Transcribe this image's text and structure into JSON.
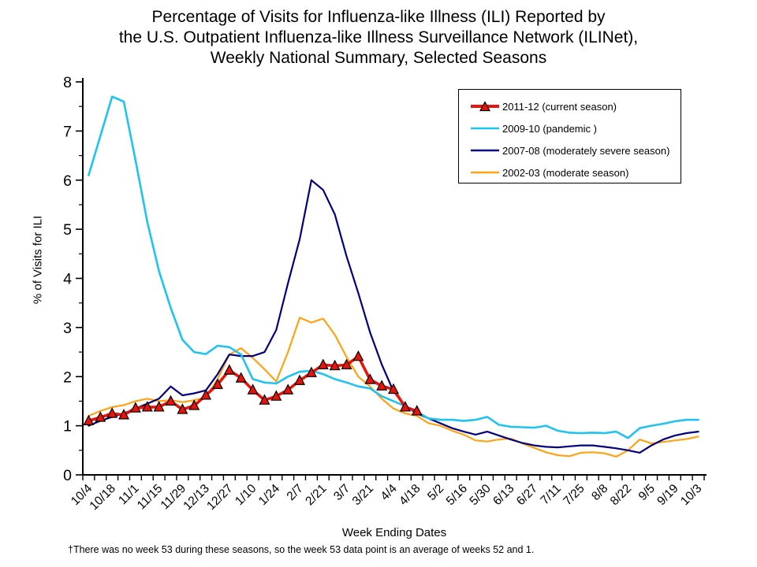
{
  "title": {
    "lines": [
      "Percentage of Visits for Influenza-like Illness (ILI) Reported by",
      "the U.S. Outpatient Influenza-like Illness Surveillance Network (ILINet),",
      "Weekly National Summary, Selected Seasons"
    ]
  },
  "footnote": "†There was no week 53 during these seasons, so the week 53 data point is an average of weeks 52 and 1.",
  "chart_data": {
    "type": "line",
    "title": "Percentage of Visits for Influenza-like Illness (ILI) Reported by the U.S. Outpatient Influenza-like Illness Surveillance Network (ILINet), Weekly National Summary, Selected Seasons",
    "xlabel": "Week Ending Dates",
    "ylabel": "% of Visits for ILI",
    "ylim": [
      0,
      8
    ],
    "y_ticks": [
      0,
      1,
      2,
      3,
      4,
      5,
      6,
      7,
      8
    ],
    "grid": false,
    "legend_position": "upper right",
    "weeks_total": 53,
    "x_label_interval_weeks": 2,
    "x_tick_labels": [
      "10/4",
      "10/18",
      "11/1",
      "11/15",
      "11/29",
      "12/13",
      "12/27",
      "1/10",
      "1/24",
      "2/7",
      "2/21",
      "3/7",
      "3/21",
      "4/4",
      "4/18",
      "5/2",
      "5/16",
      "5/30",
      "6/13",
      "6/27",
      "7/11",
      "7/25",
      "8/8",
      "8/22",
      "9/5",
      "9/19",
      "10/3"
    ],
    "series": [
      {
        "id": "2011-12",
        "name": "2011-12 (current season)",
        "color": "#e8140c",
        "marker": "triangle",
        "line_width": 3.6,
        "values": [
          1.1,
          1.17,
          1.25,
          1.22,
          1.36,
          1.38,
          1.38,
          1.5,
          1.33,
          1.41,
          1.62,
          1.84,
          2.13,
          1.97,
          1.73,
          1.52,
          1.6,
          1.73,
          1.92,
          2.08,
          2.24,
          2.22,
          2.24,
          2.41,
          1.94,
          1.81,
          1.74,
          1.38,
          1.3
        ]
      },
      {
        "id": "2009-10",
        "name": "2009-10 (pandemic )",
        "color": "#1fc3f2",
        "marker": "none",
        "line_width": 2.6,
        "values": [
          6.1,
          6.9,
          7.7,
          7.6,
          6.4,
          5.15,
          4.15,
          3.4,
          2.75,
          2.5,
          2.46,
          2.63,
          2.6,
          2.45,
          1.95,
          1.88,
          1.86,
          2.0,
          2.1,
          2.12,
          2.05,
          1.95,
          1.88,
          1.8,
          1.76,
          1.6,
          1.5,
          1.4,
          1.28,
          1.15,
          1.12,
          1.12,
          1.1,
          1.12,
          1.18,
          1.02,
          0.98,
          0.97,
          0.96,
          1.0,
          0.9,
          0.86,
          0.85,
          0.86,
          0.85,
          0.88,
          0.75,
          0.95,
          1.0,
          1.04,
          1.09,
          1.12,
          1.12
        ]
      },
      {
        "id": "2007-08",
        "name": "2007-08 (moderately severe season)",
        "color": "#000080",
        "marker": "none",
        "line_width": 2.2,
        "values": [
          1.0,
          1.1,
          1.18,
          1.25,
          1.35,
          1.45,
          1.55,
          1.8,
          1.62,
          1.66,
          1.72,
          2.05,
          2.45,
          2.42,
          2.42,
          2.5,
          2.95,
          3.9,
          4.8,
          6.0,
          5.8,
          5.3,
          4.45,
          3.7,
          2.9,
          2.25,
          1.7,
          1.4,
          1.25,
          1.15,
          1.05,
          0.95,
          0.88,
          0.82,
          0.88,
          0.8,
          0.72,
          0.65,
          0.6,
          0.57,
          0.56,
          0.58,
          0.6,
          0.6,
          0.57,
          0.54,
          0.5,
          0.45,
          0.6,
          0.72,
          0.8,
          0.85,
          0.88
        ]
      },
      {
        "id": "2002-03",
        "name": "2002-03 (moderate season)",
        "color": "#ffa315",
        "marker": "none",
        "line_width": 2.2,
        "values": [
          1.2,
          1.3,
          1.38,
          1.42,
          1.5,
          1.55,
          1.5,
          1.52,
          1.48,
          1.52,
          1.58,
          1.95,
          2.45,
          2.58,
          2.38,
          2.15,
          1.9,
          2.5,
          3.2,
          3.1,
          3.18,
          2.85,
          2.4,
          2.0,
          1.8,
          1.55,
          1.35,
          1.25,
          1.2,
          1.05,
          1.0,
          0.9,
          0.82,
          0.7,
          0.68,
          0.72,
          0.74,
          0.64,
          0.55,
          0.46,
          0.4,
          0.38,
          0.45,
          0.46,
          0.44,
          0.37,
          0.5,
          0.72,
          0.64,
          0.67,
          0.7,
          0.73,
          0.78
        ]
      }
    ]
  }
}
